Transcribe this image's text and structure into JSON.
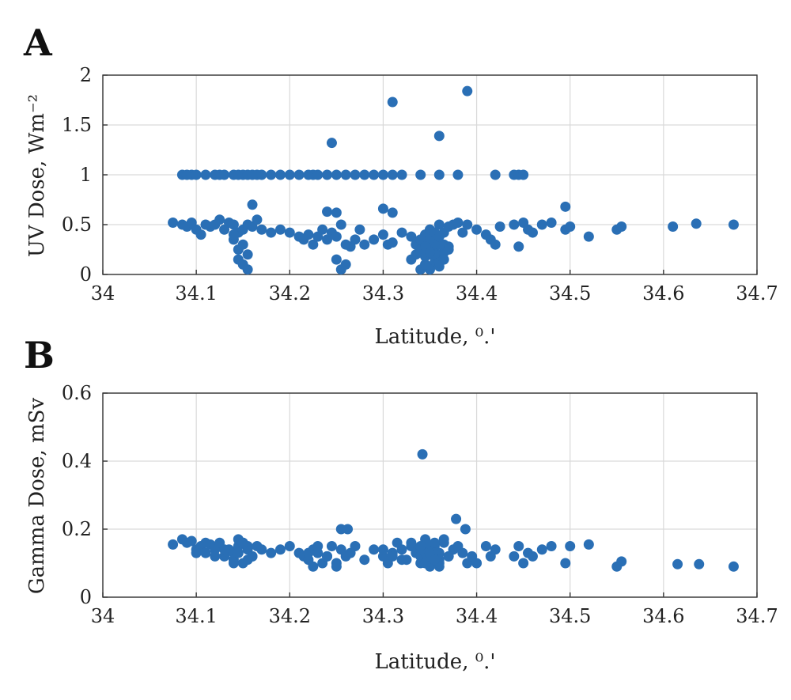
{
  "figure": {
    "panels": [
      "A",
      "B"
    ]
  },
  "chart_data": [
    {
      "type": "scatter",
      "panel": "A",
      "title": "",
      "xlabel": "Latitude, ⁰.'",
      "ylabel": "UV Dose, Wm⁻²",
      "xlim": [
        34,
        34.7
      ],
      "ylim": [
        0,
        2
      ],
      "xticks": [
        "34",
        "34.1",
        "34.2",
        "34.3",
        "34.4",
        "34.5",
        "34.6",
        "34.7"
      ],
      "yticks": [
        "0",
        "0.5",
        "1",
        "1.5",
        "2"
      ],
      "grid": true,
      "marker_color": "#2a6fb5",
      "x": [
        34.085,
        34.09,
        34.095,
        34.1,
        34.11,
        34.12,
        34.125,
        34.13,
        34.14,
        34.145,
        34.15,
        34.155,
        34.16,
        34.165,
        34.17,
        34.18,
        34.19,
        34.2,
        34.21,
        34.22,
        34.225,
        34.23,
        34.24,
        34.25,
        34.26,
        34.27,
        34.28,
        34.29,
        34.3,
        34.31,
        34.32,
        34.34,
        34.36,
        34.38,
        34.42,
        34.44,
        34.445,
        34.45,
        34.075,
        34.085,
        34.09,
        34.095,
        34.1,
        34.105,
        34.11,
        34.115,
        34.12,
        34.125,
        34.13,
        34.135,
        34.14,
        34.145,
        34.15,
        34.155,
        34.16,
        34.165,
        34.17,
        34.18,
        34.19,
        34.2,
        34.21,
        34.215,
        34.22,
        34.225,
        34.23,
        34.235,
        34.24,
        34.245,
        34.25,
        34.255,
        34.26,
        34.265,
        34.27,
        34.275,
        34.28,
        34.29,
        34.3,
        34.305,
        34.31,
        34.32,
        34.33,
        34.335,
        34.34,
        34.345,
        34.35,
        34.355,
        34.36,
        34.365,
        34.37,
        34.375,
        34.38,
        34.385,
        34.39,
        34.4,
        34.41,
        34.415,
        34.42,
        34.425,
        34.44,
        34.445,
        34.45,
        34.455,
        34.46,
        34.47,
        34.48,
        34.495,
        34.5,
        34.52,
        34.55,
        34.555,
        34.61,
        34.635,
        34.675,
        34.14,
        34.145,
        34.15,
        34.155,
        34.145,
        34.14,
        34.15,
        34.155,
        34.25,
        34.255,
        34.26,
        34.33,
        34.335,
        34.34,
        34.345,
        34.35,
        34.355,
        34.36,
        34.365,
        34.37,
        34.34,
        34.345,
        34.35,
        34.355,
        34.36,
        34.365,
        34.345,
        34.35,
        34.355,
        34.36,
        34.34,
        34.35,
        34.355,
        34.345,
        34.35,
        34.36,
        34.34,
        34.345,
        34.35,
        34.355,
        34.36,
        34.365,
        34.37,
        34.35,
        34.355,
        34.345,
        34.36,
        34.35,
        34.245,
        34.31,
        34.36,
        34.39,
        34.495,
        34.3,
        34.31,
        34.24,
        34.25,
        34.16
      ],
      "y": [
        1,
        1,
        1,
        1,
        1,
        1,
        1,
        1,
        1,
        1,
        1,
        1,
        1,
        1,
        1,
        1,
        1,
        1,
        1,
        1,
        1,
        1,
        1,
        1,
        1,
        1,
        1,
        1,
        1,
        1,
        1,
        1,
        1,
        1,
        1,
        1,
        1,
        1,
        0.52,
        0.5,
        0.48,
        0.52,
        0.45,
        0.4,
        0.5,
        0.48,
        0.5,
        0.55,
        0.45,
        0.52,
        0.5,
        0.42,
        0.45,
        0.5,
        0.48,
        0.55,
        0.45,
        0.42,
        0.45,
        0.42,
        0.38,
        0.35,
        0.4,
        0.3,
        0.38,
        0.45,
        0.35,
        0.42,
        0.38,
        0.5,
        0.3,
        0.28,
        0.35,
        0.45,
        0.3,
        0.35,
        0.4,
        0.3,
        0.32,
        0.42,
        0.38,
        0.3,
        0.35,
        0.4,
        0.45,
        0.38,
        0.5,
        0.42,
        0.48,
        0.5,
        0.52,
        0.42,
        0.5,
        0.45,
        0.4,
        0.35,
        0.3,
        0.48,
        0.5,
        0.28,
        0.52,
        0.45,
        0.42,
        0.5,
        0.52,
        0.45,
        0.48,
        0.38,
        0.45,
        0.48,
        0.48,
        0.51,
        0.5,
        0.35,
        0.25,
        0.3,
        0.2,
        0.15,
        0.4,
        0.1,
        0.05,
        0.15,
        0.05,
        0.1,
        0.15,
        0.2,
        0.25,
        0.1,
        0.3,
        0.35,
        0.18,
        0.22,
        0.28,
        0.05,
        0.4,
        0.2,
        0.12,
        0.08,
        0.3,
        0.3,
        0.45,
        0.25,
        0.15,
        0.35,
        0.05,
        0.2,
        0.1,
        0.4,
        0.3,
        0.22,
        0.18,
        0.25,
        0.32,
        0.12,
        0.15,
        0.25,
        0.35,
        0.42,
        0.28,
        0.38,
        0.22,
        1.32,
        1.73,
        1.39,
        1.84,
        0.68,
        0.66,
        0.62,
        0.63,
        0.62,
        0.7
      ],
      "point_labels": []
    },
    {
      "type": "scatter",
      "panel": "B",
      "title": "",
      "xlabel": "Latitude, ⁰.'",
      "ylabel": "Gamma Dose, mSv",
      "xlim": [
        34,
        34.7
      ],
      "ylim": [
        0,
        0.6
      ],
      "xticks": [
        "34",
        "34.1",
        "34.2",
        "34.3",
        "34.4",
        "34.5",
        "34.6",
        "34.7"
      ],
      "yticks": [
        "0",
        "0.2",
        "0.4",
        "0.6"
      ],
      "grid": true,
      "marker_color": "#2a6fb5",
      "x": [
        34.075,
        34.085,
        34.09,
        34.095,
        34.1,
        34.105,
        34.11,
        34.115,
        34.12,
        34.125,
        34.13,
        34.135,
        34.14,
        34.145,
        34.15,
        34.155,
        34.16,
        34.165,
        34.17,
        34.18,
        34.19,
        34.2,
        34.21,
        34.215,
        34.22,
        34.225,
        34.23,
        34.235,
        34.24,
        34.245,
        34.25,
        34.255,
        34.26,
        34.265,
        34.27,
        34.28,
        34.29,
        34.3,
        34.305,
        34.31,
        34.315,
        34.32,
        34.325,
        34.33,
        34.335,
        34.34,
        34.345,
        34.35,
        34.355,
        34.36,
        34.365,
        34.37,
        34.375,
        34.38,
        34.385,
        34.39,
        34.395,
        34.4,
        34.41,
        34.415,
        34.42,
        34.44,
        34.445,
        34.45,
        34.455,
        34.46,
        34.47,
        34.48,
        34.495,
        34.5,
        34.52,
        34.55,
        34.555,
        34.615,
        34.638,
        34.675,
        34.1,
        34.11,
        34.12,
        34.13,
        34.14,
        34.145,
        34.15,
        34.155,
        34.16,
        34.14,
        34.145,
        34.15,
        34.155,
        34.22,
        34.225,
        34.23,
        34.24,
        34.25,
        34.3,
        34.31,
        34.32,
        34.33,
        34.34,
        34.345,
        34.35,
        34.355,
        34.36,
        34.365,
        34.37,
        34.34,
        34.345,
        34.35,
        34.355,
        34.36,
        34.35,
        34.36,
        34.345,
        34.34,
        34.355,
        34.255,
        34.262,
        34.378,
        34.388,
        34.342
      ],
      "y": [
        0.155,
        0.17,
        0.16,
        0.165,
        0.14,
        0.15,
        0.13,
        0.155,
        0.14,
        0.16,
        0.12,
        0.14,
        0.13,
        0.15,
        0.16,
        0.14,
        0.12,
        0.15,
        0.14,
        0.13,
        0.14,
        0.15,
        0.13,
        0.12,
        0.11,
        0.14,
        0.13,
        0.1,
        0.12,
        0.15,
        0.1,
        0.14,
        0.12,
        0.13,
        0.15,
        0.11,
        0.14,
        0.12,
        0.1,
        0.13,
        0.16,
        0.14,
        0.11,
        0.15,
        0.13,
        0.12,
        0.14,
        0.15,
        0.1,
        0.13,
        0.16,
        0.12,
        0.14,
        0.15,
        0.13,
        0.1,
        0.12,
        0.1,
        0.15,
        0.12,
        0.14,
        0.12,
        0.15,
        0.1,
        0.13,
        0.12,
        0.14,
        0.15,
        0.1,
        0.15,
        0.155,
        0.09,
        0.105,
        0.097,
        0.097,
        0.09,
        0.13,
        0.16,
        0.12,
        0.14,
        0.11,
        0.17,
        0.1,
        0.15,
        0.12,
        0.1,
        0.13,
        0.16,
        0.11,
        0.13,
        0.09,
        0.15,
        0.12,
        0.09,
        0.14,
        0.12,
        0.11,
        0.16,
        0.1,
        0.13,
        0.09,
        0.15,
        0.11,
        0.17,
        0.12,
        0.14,
        0.1,
        0.12,
        0.16,
        0.09,
        0.13,
        0.1,
        0.17,
        0.15,
        0.11,
        0.2,
        0.2,
        0.23,
        0.2,
        0.42
      ],
      "point_labels": []
    }
  ]
}
